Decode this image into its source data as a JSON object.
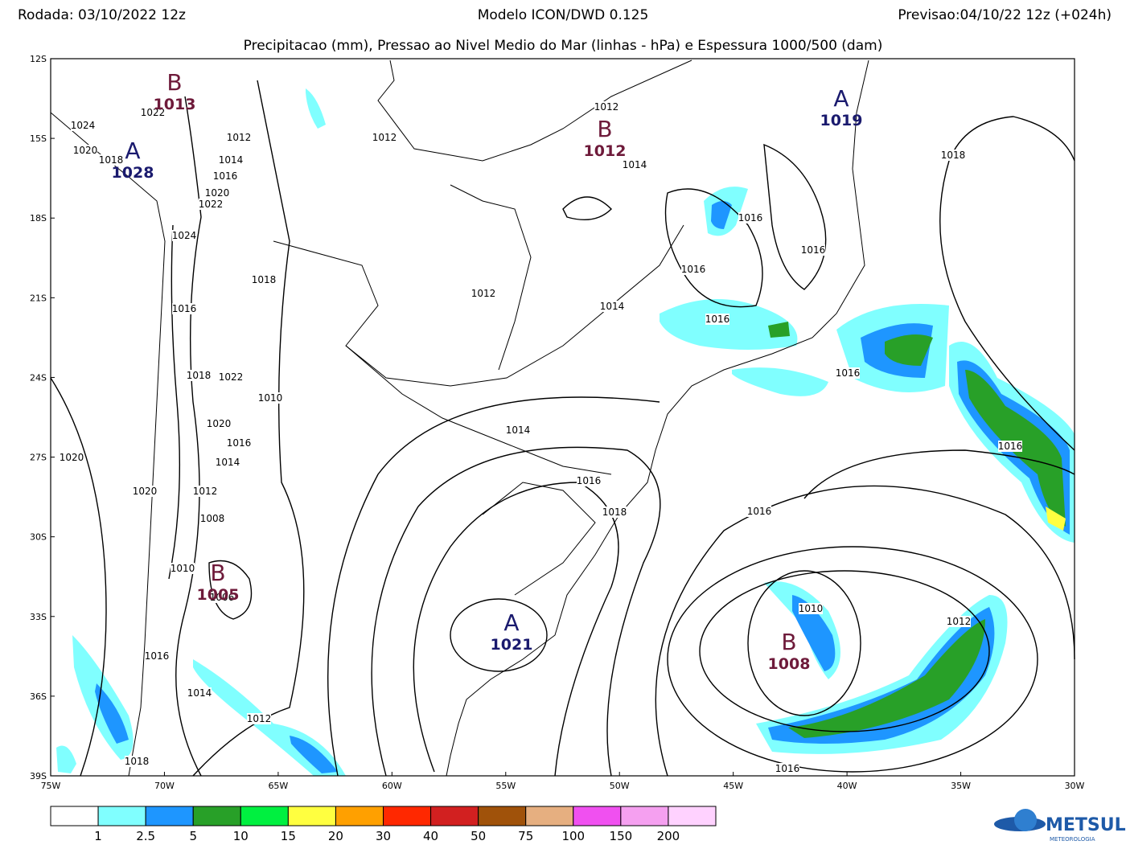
{
  "header": {
    "run": "Rodada: 03/10/2022 12z",
    "model": "Modelo ICON/DWD 0.125",
    "forecast": "Previsao:04/10/22 12z (+024h)",
    "subtitle": "Precipitacao (mm), Pressao ao Nivel Medio do Mar (linhas - hPa) e Espessura 1000/500 (dam)"
  },
  "map": {
    "lat_labels": [
      "12S",
      "15S",
      "18S",
      "21S",
      "24S",
      "27S",
      "30S",
      "33S",
      "36S",
      "39S"
    ],
    "lon_labels": [
      "75W",
      "70W",
      "65W",
      "60W",
      "55W",
      "50W",
      "45W",
      "40W",
      "35W",
      "30W"
    ],
    "centers": [
      {
        "letter": "B",
        "value": "1013"
      },
      {
        "letter": "A",
        "value": "1028"
      },
      {
        "letter": "B",
        "value": "1012"
      },
      {
        "letter": "A",
        "value": "1019"
      },
      {
        "letter": "B",
        "value": "1005"
      },
      {
        "letter": "A",
        "value": "1021"
      },
      {
        "letter": "B",
        "value": "1008"
      }
    ],
    "isobar_labels": [
      "1022",
      "1024",
      "1020",
      "1018",
      "1012",
      "1014",
      "1016",
      "1020",
      "1022",
      "1024",
      "1018",
      "1016",
      "1018",
      "1022",
      "1010",
      "1020",
      "1016",
      "1014",
      "1020",
      "1020",
      "1012",
      "1008",
      "1010",
      "1006",
      "1016",
      "1014",
      "1012",
      "1018",
      "1012",
      "1012",
      "1014",
      "1016",
      "1016",
      "1016",
      "1012",
      "1014",
      "1016",
      "1016",
      "1014",
      "1016",
      "1018",
      "1016",
      "1018",
      "1016",
      "1010",
      "1012",
      "1016"
    ]
  },
  "legend": {
    "labels": [
      "1",
      "2.5",
      "5",
      "10",
      "15",
      "20",
      "30",
      "40",
      "50",
      "75",
      "100",
      "150",
      "200"
    ],
    "colors": [
      "#ffffff",
      "#80ffff",
      "#1e96ff",
      "#28a028",
      "#00f040",
      "#ffff40",
      "#ffa000",
      "#ff2800",
      "#d22020",
      "#a0520a",
      "#e6af80",
      "#f050f0",
      "#f5a0f0",
      "#ffd2ff"
    ]
  },
  "logo": {
    "name": "METSUL",
    "tagline": "METEOROLOGIA"
  }
}
